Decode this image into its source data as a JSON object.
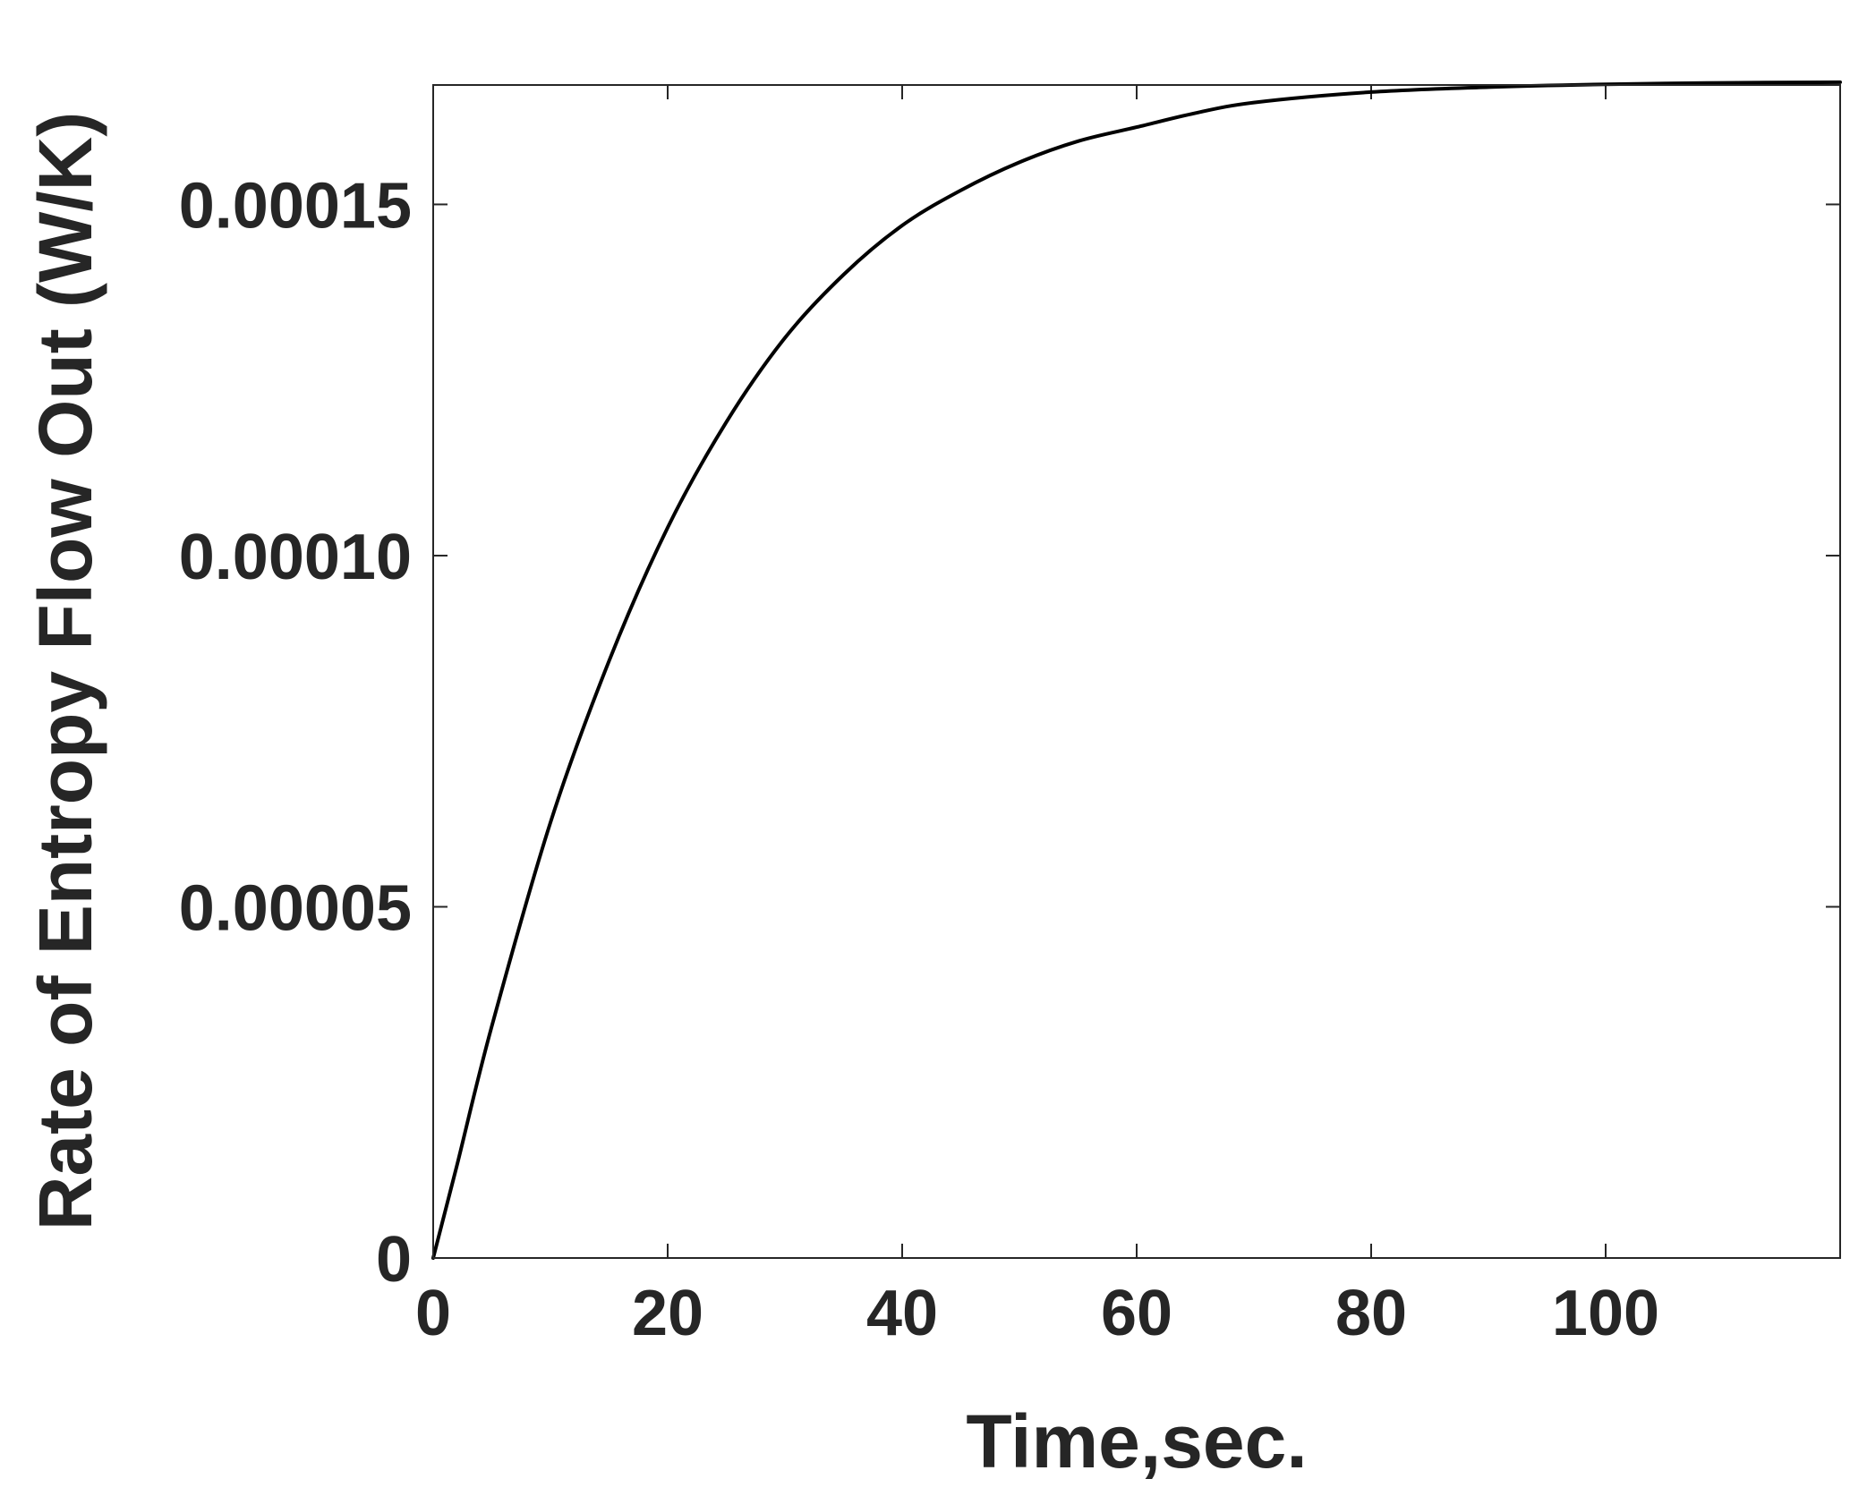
{
  "chart_data": {
    "type": "line",
    "title": "",
    "xlabel": "Time,sec.",
    "ylabel": "Rate of Entropy Flow Out (W/K)",
    "xlim": [
      0,
      120
    ],
    "ylim": [
      0,
      0.000167
    ],
    "x_ticks": [
      0,
      20,
      40,
      60,
      80,
      100
    ],
    "x_tick_labels": [
      "0",
      "20",
      "40",
      "60",
      "80",
      "100"
    ],
    "y_ticks": [
      0,
      5e-05,
      0.0001,
      0.00015
    ],
    "y_tick_labels": [
      "0",
      "0.00005",
      "0.00010",
      "0.00015"
    ],
    "grid": false,
    "legend": "none",
    "line_color": "#000000",
    "series": [
      {
        "x": [
          0,
          2,
          5,
          10,
          15,
          20,
          25,
          30,
          35,
          40,
          45,
          50,
          55,
          60,
          65,
          70,
          80,
          90,
          100,
          110,
          120
        ],
        "values": [
          0,
          1.3e-05,
          3.3e-05,
          6.2e-05,
          8.5e-05,
          0.000104,
          0.000119,
          0.000131,
          0.00014,
          0.000147,
          0.000152,
          0.000156,
          0.000159,
          0.000161,
          0.000163,
          0.0001645,
          0.000166,
          0.0001667,
          0.0001671,
          0.0001673,
          0.0001674
        ]
      }
    ]
  }
}
